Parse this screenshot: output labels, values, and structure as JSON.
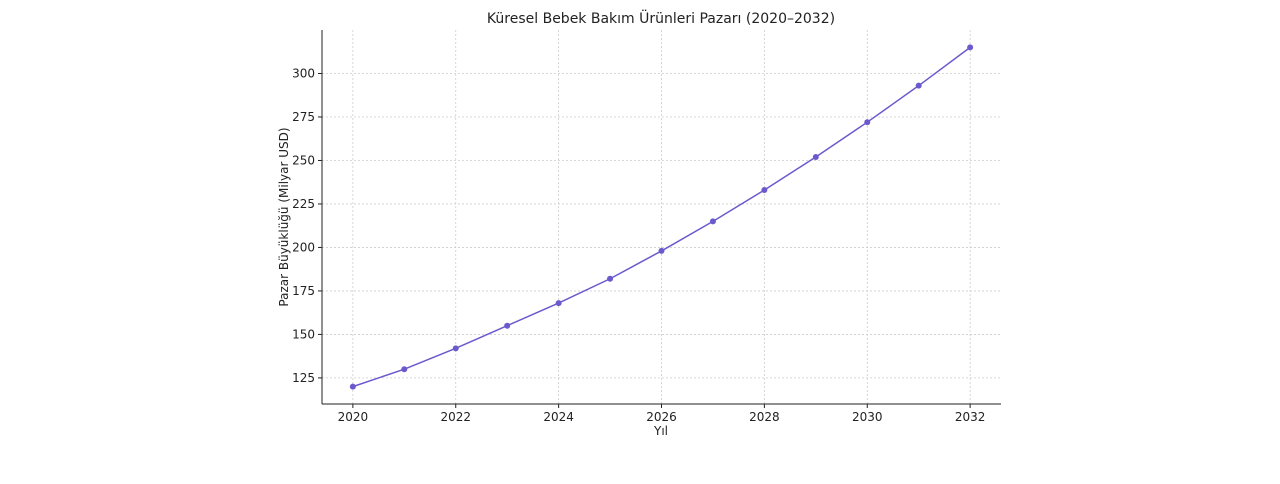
{
  "chart_data": {
    "type": "line",
    "title": "Küresel Bebek Bakım Ürünleri Pazarı (2020–2032)",
    "xlabel": "Yıl",
    "ylabel": "Pazar Büyüklüğü (Milyar USD)",
    "x": [
      2020,
      2021,
      2022,
      2023,
      2024,
      2025,
      2026,
      2027,
      2028,
      2029,
      2030,
      2031,
      2032
    ],
    "series": [
      {
        "values": [
          120,
          130,
          142,
          155,
          168,
          182,
          198,
          215,
          233,
          252,
          272,
          293,
          315
        ],
        "color": "#6a5acd",
        "marker": "circle"
      }
    ],
    "xticks": [
      2020,
      2022,
      2024,
      2026,
      2028,
      2030,
      2032
    ],
    "yticks": [
      125,
      150,
      175,
      200,
      225,
      250,
      275,
      300
    ],
    "xlim": [
      2019.4,
      2032.6
    ],
    "ylim": [
      110,
      325
    ],
    "grid": true,
    "grid_style": "dashed"
  }
}
